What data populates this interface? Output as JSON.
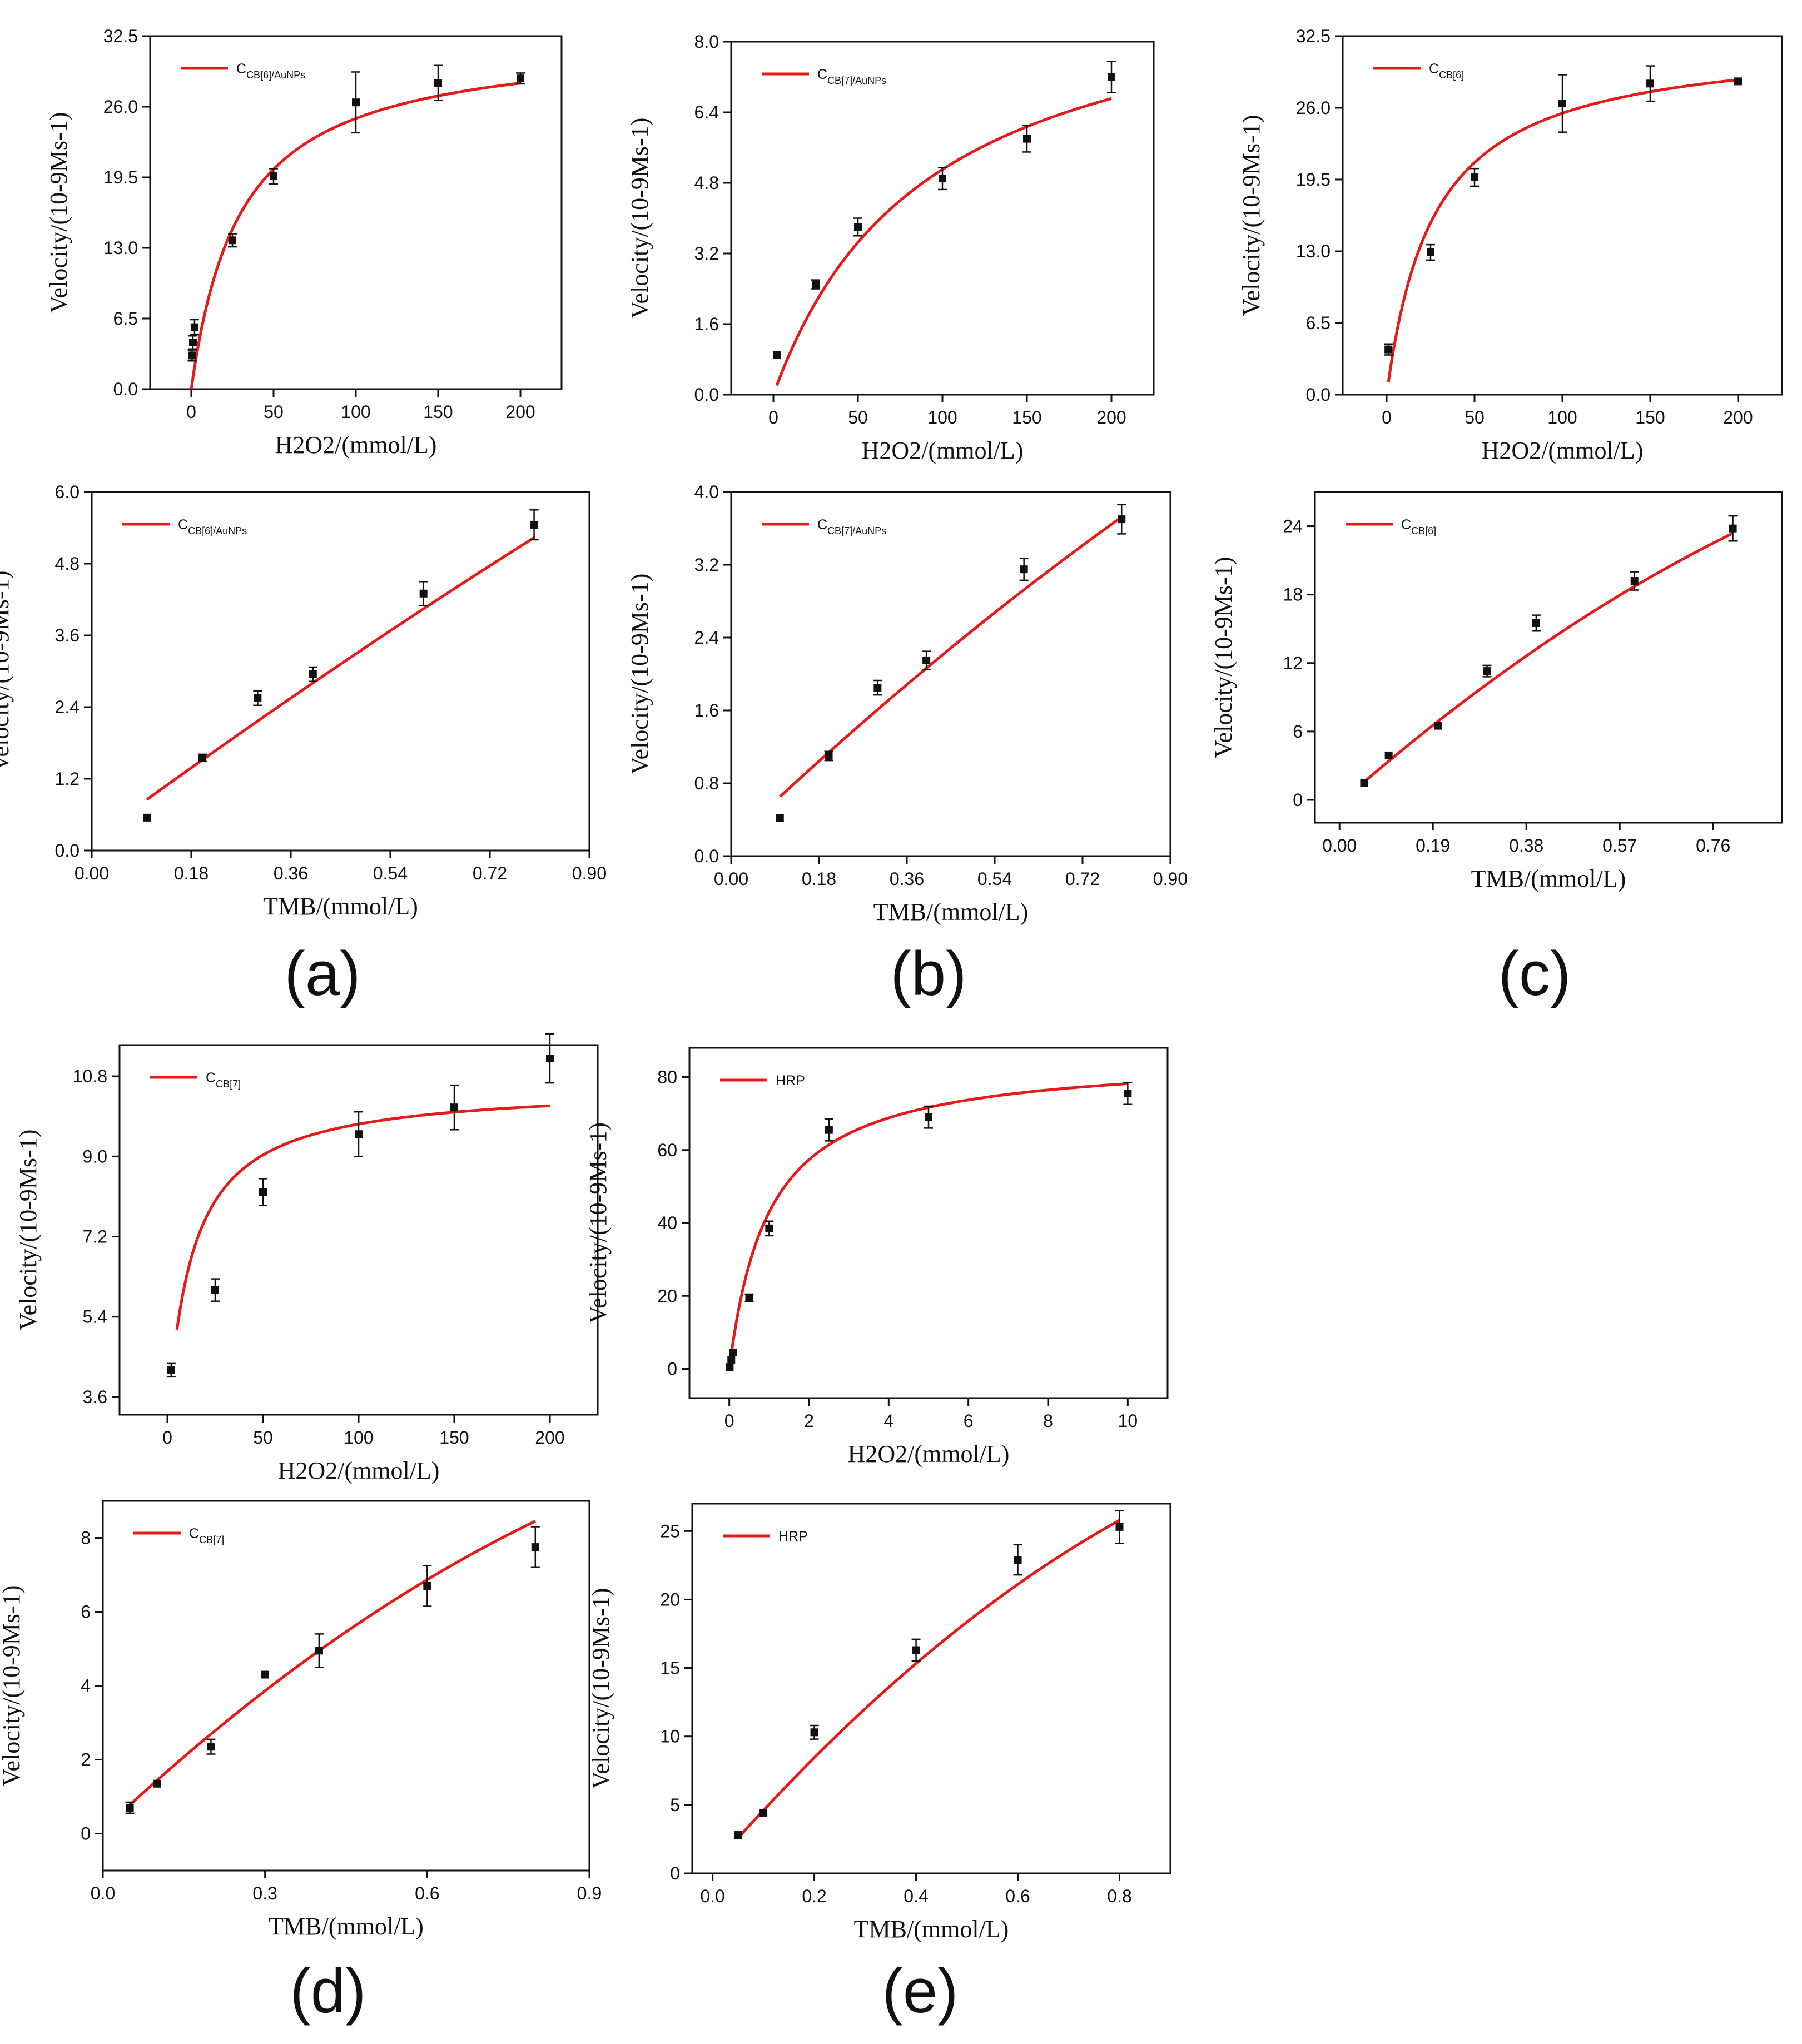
{
  "figure_labels": [
    "(a)",
    "(b)",
    "(c)",
    "(d)",
    "(e)"
  ],
  "colors": {
    "fit": "#e81919",
    "point": "#111111",
    "axis": "#111111"
  },
  "chart_data": [
    {
      "type": "scatter",
      "id": "a-h2o2",
      "legend": {
        "main": "C",
        "sub": "CB[6]/AuNPs"
      },
      "xlabel": "H2O2/(mmol/L)",
      "ylabel": "Velocity/(10-9Ms-1)",
      "xlim": [
        -25,
        225
      ],
      "ylim": [
        0,
        32.5
      ],
      "xticks": [
        0,
        50,
        100,
        150,
        200
      ],
      "xtick_labels": [
        "0",
        "50",
        "100",
        "150",
        "200"
      ],
      "yticks": [
        0,
        6.5,
        13,
        19.5,
        26,
        32.5
      ],
      "ytick_labels": [
        "0.0",
        "6.5",
        "13.0",
        "19.5",
        "26.0",
        "32.5"
      ],
      "points": [
        [
          0.5,
          3.1,
          0.5
        ],
        [
          1,
          4.3,
          0.6
        ],
        [
          2,
          5.7,
          0.7
        ],
        [
          25,
          13.7,
          0.6
        ],
        [
          50,
          19.6,
          0.7
        ],
        [
          100,
          26.4,
          2.8
        ],
        [
          150,
          28.2,
          1.6
        ],
        [
          200,
          28.6,
          0.5
        ]
      ],
      "fit": {
        "model": "michaelis",
        "vmax": 32.4,
        "km": 30,
        "x0": 0,
        "x1": 200
      }
    },
    {
      "type": "scatter",
      "id": "b-h2o2",
      "legend": {
        "main": "C",
        "sub": "CB[7]/AuNPs"
      },
      "xlabel": "H2O2/(mmol/L)",
      "ylabel": "Velocity/(10-9Ms-1)",
      "xlim": [
        -25,
        225
      ],
      "ylim": [
        0,
        8
      ],
      "xticks": [
        0,
        50,
        100,
        150,
        200
      ],
      "xtick_labels": [
        "0",
        "50",
        "100",
        "150",
        "200"
      ],
      "yticks": [
        0,
        1.6,
        3.2,
        4.8,
        6.4,
        8
      ],
      "ytick_labels": [
        "0.0",
        "1.6",
        "3.2",
        "4.8",
        "6.4",
        "8.0"
      ],
      "points": [
        [
          2,
          0.9,
          0
        ],
        [
          25,
          2.5,
          0.1
        ],
        [
          50,
          3.8,
          0.2
        ],
        [
          100,
          4.9,
          0.25
        ],
        [
          150,
          5.8,
          0.3
        ],
        [
          200,
          7.2,
          0.35
        ]
      ],
      "fit": {
        "model": "michaelis",
        "vmax": 9.8,
        "km": 92,
        "x0": 2,
        "x1": 200
      }
    },
    {
      "type": "scatter",
      "id": "c-h2o2",
      "legend": {
        "main": "C",
        "sub": "CB[6]"
      },
      "xlabel": "H2O2/(mmol/L)",
      "ylabel": "Velocity/(10-9Ms-1)",
      "xlim": [
        -25,
        225
      ],
      "ylim": [
        0,
        32.5
      ],
      "xticks": [
        0,
        50,
        100,
        150,
        200
      ],
      "xtick_labels": [
        "0",
        "50",
        "100",
        "150",
        "200"
      ],
      "yticks": [
        0,
        6.5,
        13,
        19.5,
        26,
        32.5
      ],
      "ytick_labels": [
        "0.0",
        "6.5",
        "13.0",
        "19.5",
        "26.0",
        "32.5"
      ],
      "points": [
        [
          1,
          4.1,
          0.5
        ],
        [
          25,
          12.9,
          0.7
        ],
        [
          50,
          19.7,
          0.8
        ],
        [
          100,
          26.4,
          2.6
        ],
        [
          150,
          28.2,
          1.6
        ],
        [
          200,
          28.4,
          0
        ]
      ],
      "fit": {
        "model": "michaelis",
        "vmax": 32.4,
        "km": 27,
        "x0": 1,
        "x1": 200
      }
    },
    {
      "type": "scatter",
      "id": "a-tmb",
      "legend": {
        "main": "C",
        "sub": "CB[6]/AuNPs"
      },
      "xlabel": "TMB/(mmol/L)",
      "ylabel": "Velocity/(10-9Ms-1)",
      "xlim": [
        0,
        0.9
      ],
      "ylim": [
        0,
        6
      ],
      "xticks": [
        0,
        0.18,
        0.36,
        0.54,
        0.72,
        0.9
      ],
      "xtick_labels": [
        "0.00",
        "0.18",
        "0.36",
        "0.54",
        "0.72",
        "0.90"
      ],
      "yticks": [
        0,
        1.2,
        2.4,
        3.6,
        4.8,
        6
      ],
      "ytick_labels": [
        "0.0",
        "1.2",
        "2.4",
        "3.6",
        "4.8",
        "6.0"
      ],
      "points": [
        [
          0.1,
          0.55,
          0
        ],
        [
          0.2,
          1.55,
          0.06
        ],
        [
          0.3,
          2.55,
          0.12
        ],
        [
          0.4,
          2.95,
          0.12
        ],
        [
          0.6,
          4.3,
          0.2
        ],
        [
          0.8,
          5.45,
          0.25
        ]
      ],
      "fit": {
        "model": "poly",
        "a": 0.18,
        "b": 6.8,
        "c": -0.6,
        "x0": 0.1,
        "x1": 0.8
      }
    },
    {
      "type": "scatter",
      "id": "b-tmb",
      "legend": {
        "main": "C",
        "sub": "CB[7]/AuNPs"
      },
      "xlabel": "TMB/(mmol/L)",
      "ylabel": "Velocity/(10-9Ms-1)",
      "xlim": [
        0,
        0.9
      ],
      "ylim": [
        0,
        4
      ],
      "xticks": [
        0,
        0.18,
        0.36,
        0.54,
        0.72,
        0.9
      ],
      "xtick_labels": [
        "0.00",
        "0.18",
        "0.36",
        "0.54",
        "0.72",
        "0.90"
      ],
      "yticks": [
        0,
        0.8,
        1.6,
        2.4,
        3.2,
        4
      ],
      "ytick_labels": [
        "0.0",
        "0.8",
        "1.6",
        "2.4",
        "3.2",
        "4.0"
      ],
      "points": [
        [
          0.1,
          0.42,
          0
        ],
        [
          0.2,
          1.1,
          0.05
        ],
        [
          0.3,
          1.85,
          0.08
        ],
        [
          0.4,
          2.15,
          0.1
        ],
        [
          0.6,
          3.15,
          0.12
        ],
        [
          0.8,
          3.7,
          0.16
        ]
      ],
      "fit": {
        "model": "poly",
        "a": 0.15,
        "b": 5.1,
        "c": -0.79,
        "x0": 0.1,
        "x1": 0.8
      }
    },
    {
      "type": "scatter",
      "id": "c-tmb",
      "legend": {
        "main": "C",
        "sub": "CB[6]"
      },
      "xlabel": "TMB/(mmol/L)",
      "ylabel": "Velocity/(10-9Ms-1)",
      "xlim": [
        -0.05,
        0.9
      ],
      "ylim": [
        -2,
        27
      ],
      "xticks": [
        0,
        0.19,
        0.38,
        0.57,
        0.76
      ],
      "xtick_labels": [
        "0.00",
        "0.19",
        "0.38",
        "0.57",
        "0.76"
      ],
      "yticks": [
        0,
        6,
        12,
        18,
        24
      ],
      "ytick_labels": [
        "0",
        "6",
        "12",
        "18",
        "24"
      ],
      "points": [
        [
          0.05,
          1.5,
          0
        ],
        [
          0.1,
          3.9,
          0
        ],
        [
          0.2,
          6.5,
          0
        ],
        [
          0.3,
          11.3,
          0.5
        ],
        [
          0.4,
          15.5,
          0.7
        ],
        [
          0.6,
          19.2,
          0.8
        ],
        [
          0.8,
          23.8,
          1.1
        ]
      ],
      "fit": {
        "model": "poly",
        "a": -0.3,
        "b": 38,
        "c": -10.5,
        "x0": 0.05,
        "x1": 0.8
      }
    },
    {
      "type": "scatter",
      "id": "d-h2o2",
      "legend": {
        "main": "C",
        "sub": "CB[7]"
      },
      "xlabel": "H2O2/(mmol/L)",
      "ylabel": "Velocity/(10-9Ms-1)",
      "xlim": [
        -25,
        225
      ],
      "ylim": [
        3.2,
        11.5
      ],
      "xticks": [
        0,
        50,
        100,
        150,
        200
      ],
      "xtick_labels": [
        "0",
        "50",
        "100",
        "150",
        "200"
      ],
      "yticks": [
        3.6,
        5.4,
        7.2,
        9.0,
        10.8
      ],
      "ytick_labels": [
        "3.6",
        "5.4",
        "7.2",
        "9.0",
        "10.8"
      ],
      "points": [
        [
          2,
          4.2,
          0.15
        ],
        [
          25,
          6.0,
          0.25
        ],
        [
          50,
          8.2,
          0.3
        ],
        [
          100,
          9.5,
          0.5
        ],
        [
          150,
          10.1,
          0.5
        ],
        [
          200,
          11.2,
          0.55
        ]
      ],
      "fit": {
        "model": "offset",
        "vmax": 7.6,
        "km": 13,
        "x0": 5,
        "x1": 200,
        "c": 3
      }
    },
    {
      "type": "scatter",
      "id": "e-h2o2",
      "legend": {
        "main": "HRP",
        "sub": ""
      },
      "xlabel": "H2O2/(mmol/L)",
      "ylabel": "Velocity/(10-9Ms-1)",
      "xlim": [
        -1,
        11
      ],
      "ylim": [
        -8,
        88
      ],
      "xticks": [
        0,
        2,
        4,
        6,
        8,
        10
      ],
      "xtick_labels": [
        "0",
        "2",
        "4",
        "6",
        "8",
        "10"
      ],
      "yticks": [
        0,
        20,
        40,
        60,
        80
      ],
      "ytick_labels": [
        "0",
        "20",
        "40",
        "60",
        "80"
      ],
      "points": [
        [
          0.01,
          0.5,
          0
        ],
        [
          0.05,
          2.5,
          0
        ],
        [
          0.1,
          4.5,
          0
        ],
        [
          0.5,
          19.5,
          1
        ],
        [
          1,
          38.5,
          2
        ],
        [
          2.5,
          65.5,
          3
        ],
        [
          5,
          69,
          3
        ],
        [
          10,
          75.5,
          3
        ]
      ],
      "fit": {
        "model": "michaelis",
        "vmax": 86,
        "km": 1.0,
        "x0": 0,
        "x1": 10
      }
    },
    {
      "type": "scatter",
      "id": "d-tmb",
      "legend": {
        "main": "C",
        "sub": "CB[7]"
      },
      "xlabel": "TMB/(mmol/L)",
      "ylabel": "Velocity/(10-9Ms-1)",
      "xlim": [
        0,
        0.9
      ],
      "ylim": [
        -1,
        9
      ],
      "xticks": [
        0,
        0.3,
        0.6,
        0.9
      ],
      "xtick_labels": [
        "0.0",
        "0.3",
        "0.6",
        "0.9"
      ],
      "yticks": [
        0,
        2,
        4,
        6,
        8
      ],
      "ytick_labels": [
        "0",
        "2",
        "4",
        "6",
        "8"
      ],
      "points": [
        [
          0.05,
          0.7,
          0.15
        ],
        [
          0.1,
          1.35,
          0
        ],
        [
          0.2,
          2.35,
          0.2
        ],
        [
          0.3,
          4.3,
          0
        ],
        [
          0.4,
          4.95,
          0.45
        ],
        [
          0.6,
          6.7,
          0.55
        ],
        [
          0.8,
          7.75,
          0.55
        ]
      ],
      "fit": {
        "model": "poly",
        "a": 0.1,
        "b": 13.8,
        "c": -4.2,
        "x0": 0.05,
        "x1": 0.8
      }
    },
    {
      "type": "scatter",
      "id": "e-tmb",
      "legend": {
        "main": "HRP",
        "sub": ""
      },
      "xlabel": "TMB/(mmol/L)",
      "ylabel": "Velocity/(10-9Ms-1)",
      "xlim": [
        -0.04,
        0.9
      ],
      "ylim": [
        0,
        27
      ],
      "xticks": [
        0,
        0.2,
        0.4,
        0.6,
        0.8
      ],
      "xtick_labels": [
        "0.0",
        "0.2",
        "0.4",
        "0.6",
        "0.8"
      ],
      "yticks": [
        0,
        5,
        10,
        15,
        20,
        25
      ],
      "ytick_labels": [
        "0",
        "5",
        "10",
        "15",
        "20",
        "25"
      ],
      "points": [
        [
          0.05,
          2.8,
          0
        ],
        [
          0.1,
          4.4,
          0
        ],
        [
          0.2,
          10.3,
          0.5
        ],
        [
          0.4,
          16.3,
          0.8
        ],
        [
          0.6,
          22.9,
          1.1
        ],
        [
          0.8,
          25.3,
          1.2
        ]
      ],
      "fit": {
        "model": "poly",
        "a": 0.48,
        "b": 42.6,
        "c": -13.7,
        "x0": 0.05,
        "x1": 0.8
      }
    }
  ]
}
